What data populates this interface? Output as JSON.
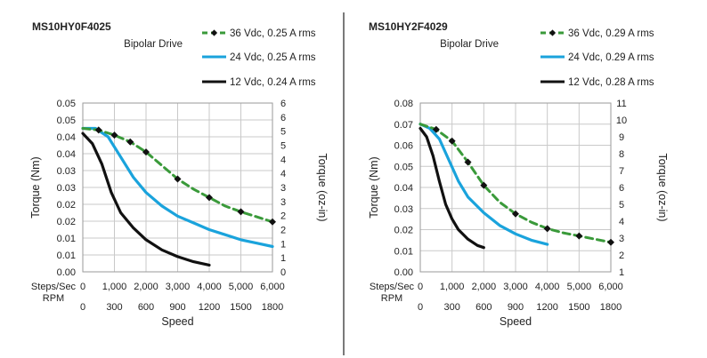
{
  "chart_data": [
    {
      "type": "line",
      "title": "MS10HY0F4025",
      "subtitle": "Bipolar Drive",
      "ylabel": "Torque (Nm)",
      "ylabel_right": "Torque (oz-in)",
      "xlabel": "Speed",
      "x_row1_label": "Steps/Sec",
      "x_row2_label": "RPM",
      "xlim": [
        0,
        6000
      ],
      "ylim": [
        0,
        0.05
      ],
      "yticks": [
        "0.00",
        "0.01",
        "0.01",
        "0.02",
        "0.02",
        "0.03",
        "0.03",
        "0.04",
        "0.04",
        "0.05",
        "0.05"
      ],
      "yticks_right": [
        "0",
        "1",
        "1",
        "2",
        "2",
        "3",
        "3",
        "4",
        "4",
        "5",
        "5",
        "6",
        "6"
      ],
      "xticks_steps": [
        "0",
        "1,000",
        "2,000",
        "3,000",
        "4,000",
        "5,000",
        "6,000"
      ],
      "xticks_rpm": [
        "0",
        "300",
        "600",
        "900",
        "1200",
        "1500",
        "1800"
      ],
      "series": [
        {
          "name": "36 Vdc, 0.25 A rms",
          "color": "#3a9a3a",
          "style": "dashed-markers",
          "x": [
            0,
            500,
            1000,
            1500,
            2000,
            2500,
            3000,
            3500,
            4000,
            4500,
            5000,
            5500,
            6000
          ],
          "values": [
            0.0425,
            0.042,
            0.0405,
            0.0385,
            0.0355,
            0.0315,
            0.0275,
            0.0245,
            0.022,
            0.0195,
            0.0178,
            0.0163,
            0.0148
          ],
          "markers_x": [
            500,
            1000,
            1500,
            2000,
            3000,
            4000,
            5000,
            6000
          ]
        },
        {
          "name": "24 Vdc, 0.25 A rms",
          "color": "#1aa3dc",
          "style": "solid",
          "x": [
            0,
            400,
            800,
            1200,
            1600,
            2000,
            2500,
            3000,
            3500,
            4000,
            4500,
            5000,
            5500,
            6000
          ],
          "values": [
            0.0425,
            0.0425,
            0.04,
            0.034,
            0.028,
            0.0235,
            0.0195,
            0.0165,
            0.0145,
            0.0125,
            0.011,
            0.0095,
            0.0085,
            0.0075
          ]
        },
        {
          "name": "12 Vdc, 0.24 A rms",
          "color": "#111111",
          "style": "solid",
          "x": [
            0,
            300,
            600,
            900,
            1200,
            1600,
            2000,
            2500,
            3000,
            3500,
            4000
          ],
          "values": [
            0.041,
            0.038,
            0.032,
            0.0235,
            0.0175,
            0.013,
            0.0095,
            0.0065,
            0.0045,
            0.003,
            0.002
          ]
        }
      ]
    },
    {
      "type": "line",
      "title": "MS10HY2F4029",
      "subtitle": "Bipolar Drive",
      "ylabel": "Torque (Nm)",
      "ylabel_right": "Torque (oz-in)",
      "xlabel": "Speed",
      "x_row1_label": "Steps/Sec",
      "x_row2_label": "RPM",
      "xlim": [
        0,
        6000
      ],
      "ylim": [
        0,
        0.08
      ],
      "yticks": [
        "0.00",
        "0.01",
        "0.02",
        "0.03",
        "0.04",
        "0.05",
        "0.06",
        "0.07",
        "0.08"
      ],
      "yticks_right": [
        "1",
        "2",
        "3",
        "4",
        "5",
        "6",
        "7",
        "8",
        "9",
        "10",
        "11"
      ],
      "xticks_steps": [
        "0",
        "1,000",
        "2,000",
        "3,000",
        "4,000",
        "5,000",
        "6,000"
      ],
      "xticks_rpm": [
        "0",
        "300",
        "600",
        "900",
        "1200",
        "1500",
        "1800"
      ],
      "series": [
        {
          "name": "36 Vdc, 0.29 A rms",
          "color": "#3a9a3a",
          "style": "dashed-markers",
          "x": [
            0,
            500,
            1000,
            1500,
            2000,
            2500,
            3000,
            3500,
            4000,
            4500,
            5000,
            5500,
            6000
          ],
          "values": [
            0.07,
            0.0675,
            0.062,
            0.052,
            0.041,
            0.033,
            0.0275,
            0.0235,
            0.0205,
            0.0185,
            0.017,
            0.0155,
            0.014
          ],
          "markers_x": [
            500,
            1000,
            1500,
            2000,
            3000,
            4000,
            5000,
            6000
          ]
        },
        {
          "name": "24 Vdc, 0.29 A rms",
          "color": "#1aa3dc",
          "style": "solid",
          "x": [
            0,
            300,
            600,
            900,
            1200,
            1500,
            2000,
            2500,
            3000,
            3500,
            4000
          ],
          "values": [
            0.07,
            0.068,
            0.063,
            0.053,
            0.043,
            0.0355,
            0.028,
            0.022,
            0.018,
            0.015,
            0.013
          ]
        },
        {
          "name": "12 Vdc, 0.28 A rms",
          "color": "#111111",
          "style": "solid",
          "x": [
            0,
            200,
            400,
            600,
            800,
            1000,
            1200,
            1500,
            1800,
            2000
          ],
          "values": [
            0.068,
            0.064,
            0.055,
            0.043,
            0.032,
            0.025,
            0.02,
            0.0155,
            0.0125,
            0.0115
          ]
        }
      ]
    }
  ]
}
